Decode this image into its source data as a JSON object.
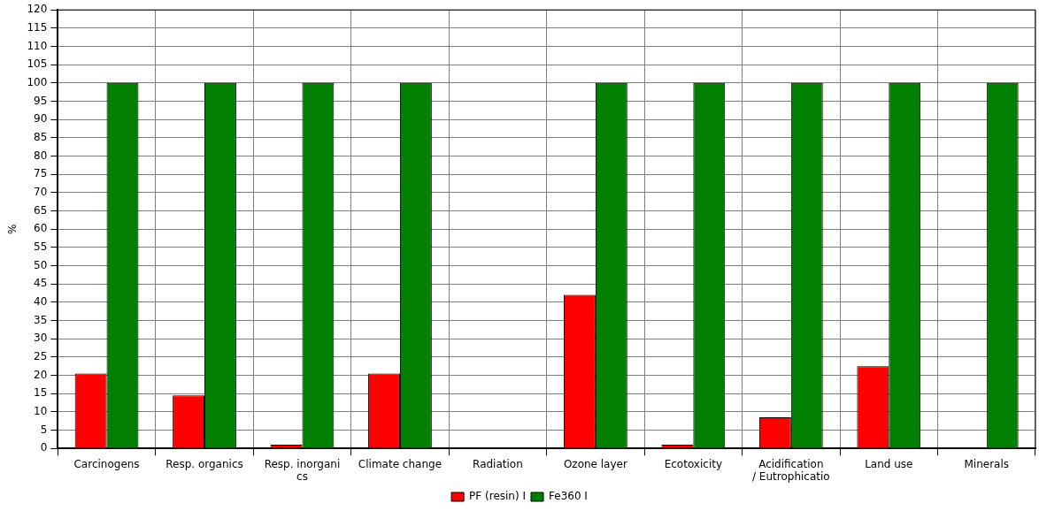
{
  "chart_data": {
    "type": "bar",
    "ylabel": "%",
    "categories": [
      "Carcinogens",
      "Resp. organics",
      "Resp. inorgani\ncs",
      "Climate change",
      "Radiation",
      "Ozone layer",
      "Ecotoxicity",
      "Acidification\n/ Eutrophicatio",
      "Land use",
      "Minerals"
    ],
    "series": [
      {
        "name": "PF (resin) I",
        "color": "#ff0000",
        "values": [
          20.5,
          14.5,
          1,
          20.5,
          0,
          42,
          1,
          8.5,
          22.5,
          0
        ]
      },
      {
        "name": "Fe360 I",
        "color": "#007f00",
        "values": [
          100,
          100,
          100,
          100,
          0,
          100,
          100,
          100,
          100,
          100
        ]
      }
    ],
    "ylim": [
      0,
      120
    ],
    "yticks": [
      0,
      5,
      10,
      15,
      20,
      25,
      30,
      35,
      40,
      45,
      50,
      55,
      60,
      65,
      70,
      75,
      80,
      85,
      90,
      95,
      100,
      105,
      110,
      115,
      120
    ],
    "grid": true,
    "legend": "bottom"
  }
}
